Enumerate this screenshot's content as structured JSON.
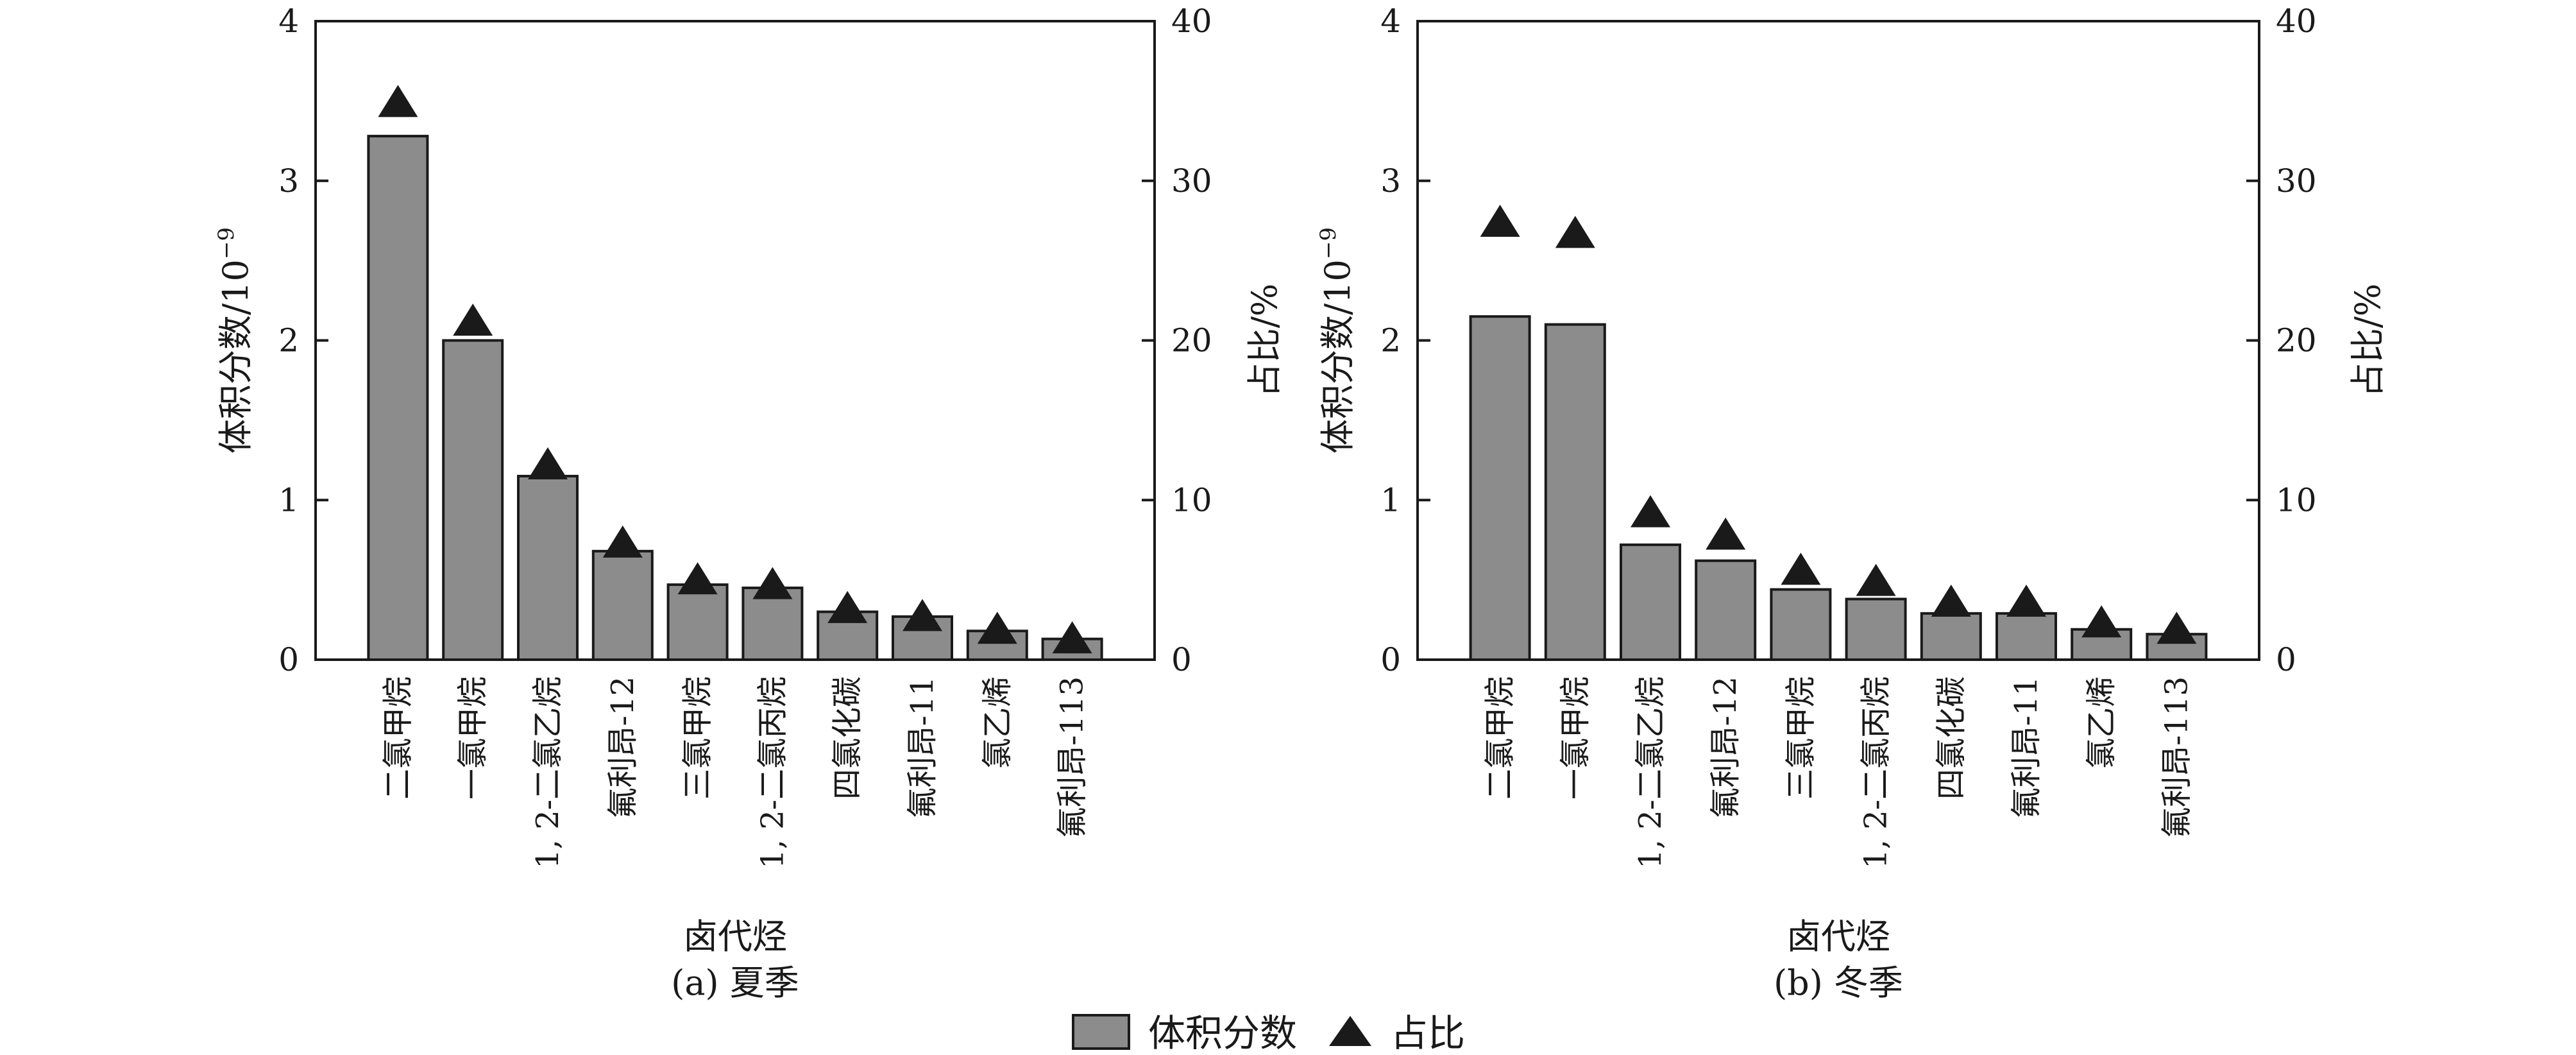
{
  "chart_data": [
    {
      "type": "bar",
      "caption": "(a) 夏季",
      "xlabel": "卤代烃",
      "ylabel_left": "体积分数/10",
      "ylabel_left_exp": "−9",
      "ylabel_right": "占比/%",
      "ylim_left": [
        0,
        4
      ],
      "ylim_right": [
        0,
        40
      ],
      "yticks_left": [
        "0",
        "1",
        "2",
        "3",
        "4"
      ],
      "yticks_right": [
        "0",
        "10",
        "20",
        "30",
        "40"
      ],
      "categories": [
        "二氯甲烷",
        "一氯甲烷",
        "1, 2-二氯乙烷",
        "氟利昂-12",
        "三氯甲烷",
        "1, 2-二氯丙烷",
        "四氯化碳",
        "氟利昂-11",
        "氯乙烯",
        "氟利昂-113"
      ],
      "series": [
        {
          "name": "体积分数",
          "axis": "left",
          "values": [
            3.28,
            2.0,
            1.15,
            0.68,
            0.47,
            0.45,
            0.3,
            0.27,
            0.18,
            0.13
          ]
        },
        {
          "name": "占比",
          "axis": "right",
          "marker": "triangle",
          "values": [
            35.0,
            21.3,
            12.3,
            7.4,
            5.1,
            4.8,
            3.3,
            2.8,
            2.0,
            1.4
          ]
        }
      ]
    },
    {
      "type": "bar",
      "caption": "(b) 冬季",
      "xlabel": "卤代烃",
      "ylabel_left": "体积分数/10",
      "ylabel_left_exp": "−9",
      "ylabel_right": "占比/%",
      "ylim_left": [
        0,
        4
      ],
      "ylim_right": [
        0,
        40
      ],
      "yticks_left": [
        "0",
        "1",
        "2",
        "3",
        "4"
      ],
      "yticks_right": [
        "0",
        "10",
        "20",
        "30",
        "40"
      ],
      "categories": [
        "二氯甲烷",
        "一氯甲烷",
        "1, 2-二氯乙烷",
        "氟利昂-12",
        "三氯甲烷",
        "1, 2-二氯丙烷",
        "四氯化碳",
        "氟利昂-11",
        "氯乙烯",
        "氟利昂-113"
      ],
      "series": [
        {
          "name": "体积分数",
          "axis": "left",
          "values": [
            2.15,
            2.1,
            0.72,
            0.62,
            0.44,
            0.38,
            0.29,
            0.29,
            0.19,
            0.16
          ]
        },
        {
          "name": "占比",
          "axis": "right",
          "marker": "triangle",
          "values": [
            27.5,
            26.8,
            9.3,
            7.9,
            5.7,
            5.0,
            3.7,
            3.7,
            2.4,
            2.0
          ]
        }
      ]
    }
  ],
  "legend": {
    "position": "bottom-center",
    "bar_label": "体积分数",
    "marker_label": "占比"
  },
  "colors": {
    "bar_fill": "#8c8c8c",
    "bar_stroke": "#1a1a1a",
    "marker": "#1a1a1a",
    "axis": "#1a1a1a"
  }
}
